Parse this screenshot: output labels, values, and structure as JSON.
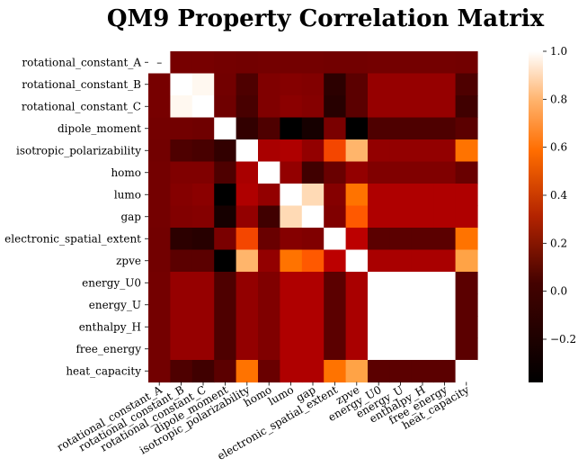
{
  "chart_data": {
    "type": "heatmap",
    "title": "QM9 Property Correlation Matrix",
    "row_labels": [
      "rotational_constant_A",
      "rotational_constant_B",
      "rotational_constant_C",
      "dipole_moment",
      "isotropic_polarizability",
      "homo",
      "lumo",
      "gap",
      "electronic_spatial_extent",
      "zpve",
      "energy_U0",
      "energy_U",
      "enthalpy_H",
      "free_energy",
      "heat_capacity"
    ],
    "col_labels": [
      "rotational_constant_A",
      "rotational_constant_B",
      "rotational_constant_C",
      "dipole_moment",
      "isotropic_polarizability",
      "homo",
      "lumo",
      "gap",
      "electronic_spatial_extent",
      "zpve",
      "energy_U0",
      "energy_U",
      "enthalpy_H",
      "free_energy",
      "heat_capacity"
    ],
    "values": [
      [
        null,
        0.05,
        0.05,
        0.04,
        0.03,
        0.04,
        0.04,
        0.04,
        0.03,
        0.03,
        0.04,
        0.04,
        0.04,
        0.04,
        0.03
      ],
      [
        0.05,
        1.0,
        0.98,
        0.03,
        -0.1,
        0.08,
        0.1,
        0.09,
        -0.22,
        -0.05,
        0.16,
        0.16,
        0.16,
        0.16,
        -0.1
      ],
      [
        0.05,
        0.98,
        1.0,
        0.02,
        -0.12,
        0.08,
        0.12,
        0.1,
        -0.24,
        -0.05,
        0.16,
        0.16,
        0.16,
        0.16,
        -0.15
      ],
      [
        0.04,
        0.03,
        0.02,
        1.0,
        -0.2,
        -0.1,
        -0.38,
        -0.3,
        0.06,
        -0.38,
        -0.1,
        -0.1,
        -0.1,
        -0.1,
        -0.05
      ],
      [
        0.03,
        -0.1,
        -0.12,
        -0.2,
        1.0,
        0.23,
        0.25,
        0.15,
        0.5,
        0.8,
        0.15,
        0.15,
        0.15,
        0.15,
        0.62
      ],
      [
        0.04,
        0.08,
        0.08,
        -0.1,
        0.23,
        1.0,
        0.15,
        -0.15,
        0.0,
        0.15,
        0.08,
        0.08,
        0.08,
        0.08,
        0.0
      ],
      [
        0.04,
        0.1,
        0.12,
        -0.38,
        0.25,
        0.15,
        1.0,
        0.9,
        0.1,
        0.62,
        0.25,
        0.25,
        0.25,
        0.25,
        0.25
      ],
      [
        0.04,
        0.09,
        0.1,
        -0.3,
        0.15,
        -0.15,
        0.9,
        1.0,
        0.08,
        0.55,
        0.25,
        0.25,
        0.25,
        0.25,
        0.25
      ],
      [
        0.03,
        -0.22,
        -0.24,
        0.06,
        0.5,
        0.0,
        0.1,
        0.08,
        1.0,
        0.3,
        -0.05,
        -0.05,
        -0.05,
        -0.05,
        0.62
      ],
      [
        0.03,
        -0.05,
        -0.05,
        -0.38,
        0.8,
        0.15,
        0.62,
        0.55,
        0.3,
        1.0,
        0.23,
        0.23,
        0.23,
        0.23,
        0.75
      ],
      [
        0.04,
        0.16,
        0.16,
        -0.1,
        0.15,
        0.08,
        0.25,
        0.25,
        -0.05,
        0.23,
        1.0,
        1.0,
        1.0,
        1.0,
        -0.05
      ],
      [
        0.04,
        0.16,
        0.16,
        -0.1,
        0.15,
        0.08,
        0.25,
        0.25,
        -0.05,
        0.23,
        1.0,
        1.0,
        1.0,
        1.0,
        -0.05
      ],
      [
        0.04,
        0.16,
        0.16,
        -0.1,
        0.15,
        0.08,
        0.25,
        0.25,
        -0.05,
        0.23,
        1.0,
        1.0,
        1.0,
        1.0,
        -0.05
      ],
      [
        0.04,
        0.16,
        0.16,
        -0.1,
        0.15,
        0.08,
        0.25,
        0.25,
        -0.05,
        0.23,
        1.0,
        1.0,
        1.0,
        1.0,
        -0.05
      ],
      [
        0.03,
        -0.1,
        -0.15,
        -0.05,
        0.62,
        0.0,
        0.25,
        0.25,
        0.62,
        0.75,
        -0.05,
        -0.05,
        -0.05,
        -0.05,
        1.0
      ]
    ],
    "vmin": -0.38,
    "vmax": 1.0,
    "colorbar_ticks": [
      1.0,
      0.8,
      0.6,
      0.4,
      0.2,
      0.0,
      -0.2
    ],
    "colorbar_tick_labels": [
      "1.0",
      "0.8",
      "0.6",
      "0.4",
      "0.2",
      "0.0",
      "−0.2"
    ],
    "colormap": "gist_heat",
    "missing_value_label": "–",
    "xlabel": "",
    "ylabel": "",
    "grid": false
  }
}
